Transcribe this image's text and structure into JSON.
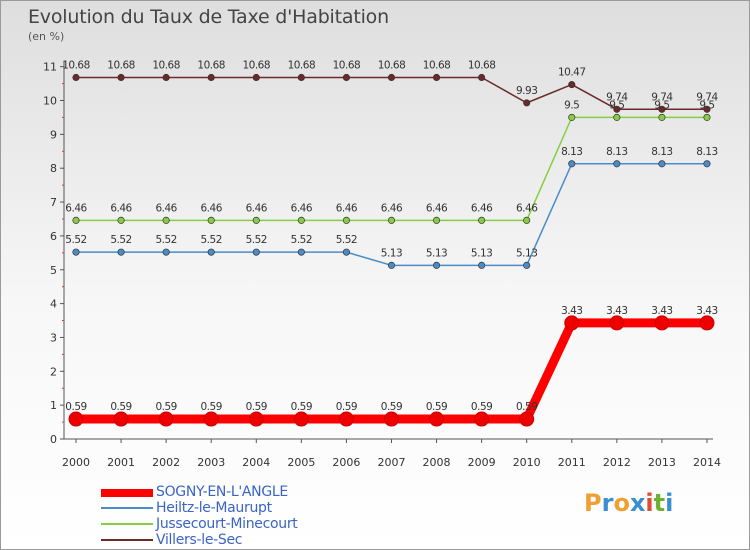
{
  "title": "Evolution du Taux de Taxe d'Habitation",
  "unit": "(en %)",
  "logo": {
    "text": "Proxiti",
    "letters": [
      "P",
      "r",
      "o",
      "x",
      "i",
      "t",
      "i"
    ],
    "colors": [
      "#f0a030",
      "#3a8fd0",
      "#f0a030",
      "#3a8fd0",
      "#e05030",
      "#70b030",
      "#3a8fd0"
    ]
  },
  "chart_data": {
    "type": "line",
    "x": [
      "2000",
      "2001",
      "2002",
      "2003",
      "2004",
      "2005",
      "2006",
      "2007",
      "2008",
      "2009",
      "2010",
      "2011",
      "2012",
      "2013",
      "2014"
    ],
    "ylim": [
      0,
      11
    ],
    "yticks": [
      "0",
      "1",
      "2",
      "3",
      "4",
      "5",
      "6",
      "7",
      "8",
      "9",
      "10",
      "11"
    ],
    "grid": false,
    "series": [
      {
        "name": "SOGNY-EN-L'ANGLE",
        "color": "#ff0000",
        "values": [
          0.59,
          0.59,
          0.59,
          0.59,
          0.59,
          0.59,
          0.59,
          0.59,
          0.59,
          0.59,
          0.59,
          3.43,
          3.43,
          3.43,
          3.43
        ],
        "labels": [
          "0.59",
          "0.59",
          "0.59",
          "0.59",
          "0.59",
          "0.59",
          "0.59",
          "0.59",
          "0.59",
          "0.59",
          "0.59",
          "3.43",
          "3.43",
          "3.43",
          "3.43"
        ]
      },
      {
        "name": "Heiltz-le-Maurupt",
        "color": "#4a8cc8",
        "values": [
          5.52,
          5.52,
          5.52,
          5.52,
          5.52,
          5.52,
          5.52,
          5.13,
          5.13,
          5.13,
          5.13,
          8.13,
          8.13,
          8.13,
          8.13
        ],
        "labels": [
          "5.52",
          "5.52",
          "5.52",
          "5.52",
          "5.52",
          "5.52",
          "5.52",
          "5.13",
          "5.13",
          "5.13",
          "5.13",
          "8.13",
          "8.13",
          "8.13",
          "8.13"
        ]
      },
      {
        "name": "Jussecourt-Minecourt",
        "color": "#88cc44",
        "values": [
          6.46,
          6.46,
          6.46,
          6.46,
          6.46,
          6.46,
          6.46,
          6.46,
          6.46,
          6.46,
          6.46,
          9.5,
          9.5,
          9.5,
          9.5
        ],
        "labels": [
          "6.46",
          "6.46",
          "6.46",
          "6.46",
          "6.46",
          "6.46",
          "6.46",
          "6.46",
          "6.46",
          "6.46",
          "6.46",
          "9.5",
          "9.5",
          "9.5",
          "9.5"
        ]
      },
      {
        "name": "Villers-le-Sec",
        "color": "#6b2a2a",
        "values": [
          10.68,
          10.68,
          10.68,
          10.68,
          10.68,
          10.68,
          10.68,
          10.68,
          10.68,
          10.68,
          9.93,
          10.47,
          9.74,
          9.74,
          9.74
        ],
        "labels": [
          "10.68",
          "10.68",
          "10.68",
          "10.68",
          "10.68",
          "10.68",
          "10.68",
          "10.68",
          "10.68",
          "10.68",
          "9.93",
          "10.47",
          "9.74",
          "9.74",
          "9.74"
        ]
      }
    ]
  }
}
